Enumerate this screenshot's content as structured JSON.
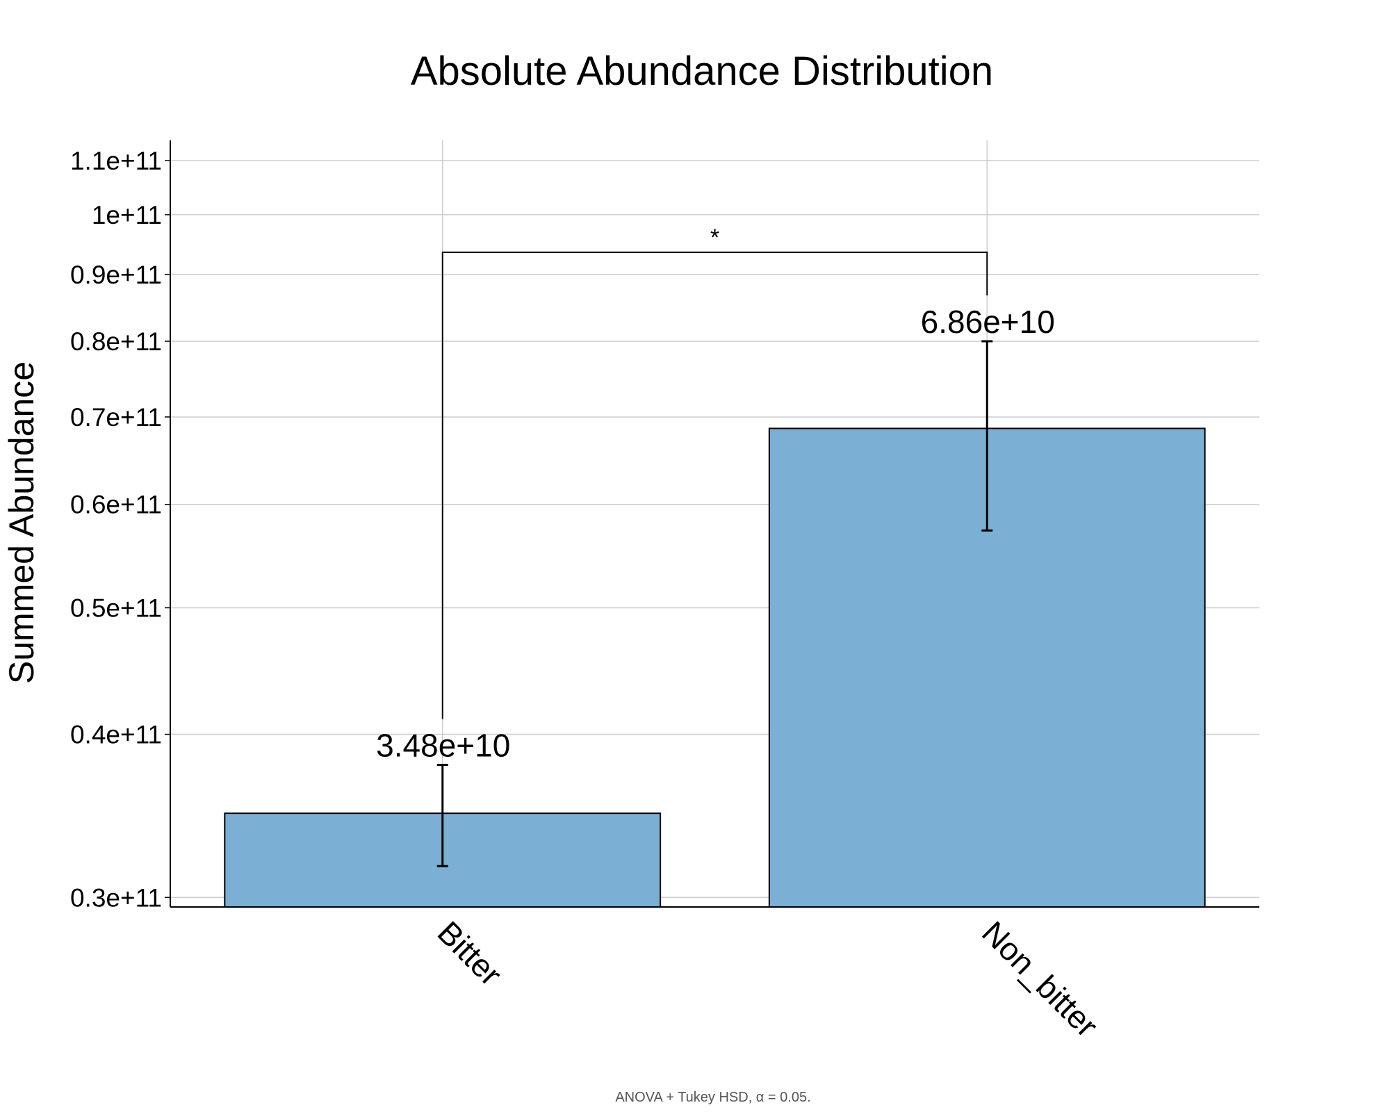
{
  "chart_data": {
    "type": "bar",
    "title": "Absolute Abundance Distribution",
    "xlabel": "",
    "ylabel": "Summed Abundance",
    "y_scale": "log",
    "ylim": [
      29500000000,
      114000000000
    ],
    "yticks": [
      30000000000,
      40000000000,
      50000000000,
      60000000000,
      70000000000,
      80000000000,
      90000000000,
      100000000000,
      110000000000
    ],
    "ytick_labels": [
      "0.3e+11",
      "0.4e+11",
      "0.5e+11",
      "0.6e+11",
      "0.7e+11",
      "0.8e+11",
      "0.9e+11",
      "1e+11",
      "1.1e+11"
    ],
    "categories": [
      "Bitter",
      "Non_bitter"
    ],
    "values": [
      34800000000,
      68600000000
    ],
    "value_labels": [
      "3.48e+10",
      "6.86e+10"
    ],
    "error_low": [
      31700000000,
      57300000000
    ],
    "error_high": [
      37900000000,
      80000000000
    ],
    "bar_color": "#7bafd4",
    "grid": true,
    "significance": {
      "pair": [
        "Bitter",
        "Non_bitter"
      ],
      "label": "*"
    },
    "footnote": "ANOVA + Tukey HSD, α = 0.05."
  }
}
